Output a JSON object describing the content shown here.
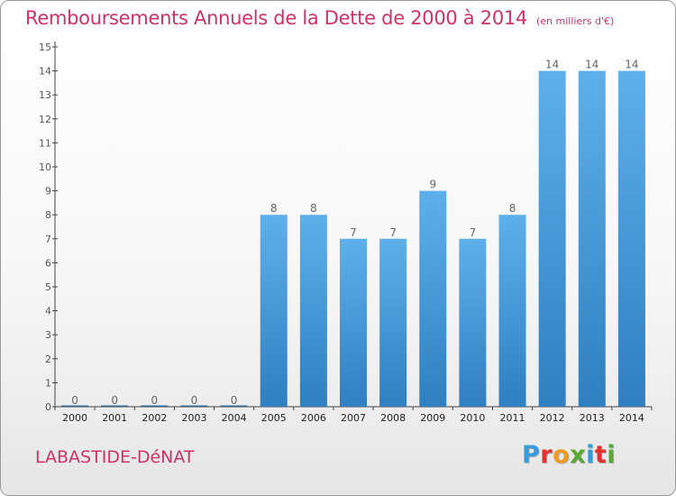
{
  "header": {
    "title": "Remboursements Annuels de la Dette de 2000 à 2014",
    "unit": "(en milliers d'€)"
  },
  "footer": {
    "place": "LABASTIDE-DéNAT",
    "logo": [
      "P",
      "r",
      "o",
      "x",
      "i",
      "t",
      "i"
    ]
  },
  "colors": {
    "title": "#cc3366",
    "bar_top": "#5eb0ea",
    "bar_bottom": "#2f7fc1",
    "logo": [
      "#3a9ad9",
      "#e3302f",
      "#f29a1d",
      "#5aa834",
      "#3a9ad9",
      "#e3302f",
      "#5aa834"
    ]
  },
  "chart_data": {
    "type": "bar",
    "title": "Remboursements Annuels de la Dette de 2000 à 2014",
    "subtitle": "(en milliers d'€)",
    "xlabel": "",
    "ylabel": "",
    "ylim": [
      0,
      15
    ],
    "yticks": [
      0,
      1,
      2,
      3,
      4,
      5,
      6,
      7,
      8,
      9,
      10,
      11,
      12,
      13,
      14,
      15
    ],
    "categories": [
      "2000",
      "2001",
      "2002",
      "2003",
      "2004",
      "2005",
      "2006",
      "2007",
      "2008",
      "2009",
      "2010",
      "2011",
      "2012",
      "2013",
      "2014"
    ],
    "values": [
      0,
      0,
      0,
      0,
      0,
      8,
      8,
      7,
      7,
      9,
      7,
      8,
      14,
      14,
      14
    ],
    "data_labels": [
      "0",
      "0",
      "0",
      "0",
      "0",
      "8",
      "8",
      "7",
      "7",
      "9",
      "7",
      "8",
      "14",
      "14",
      "14"
    ],
    "grid": false,
    "legend": "none"
  }
}
